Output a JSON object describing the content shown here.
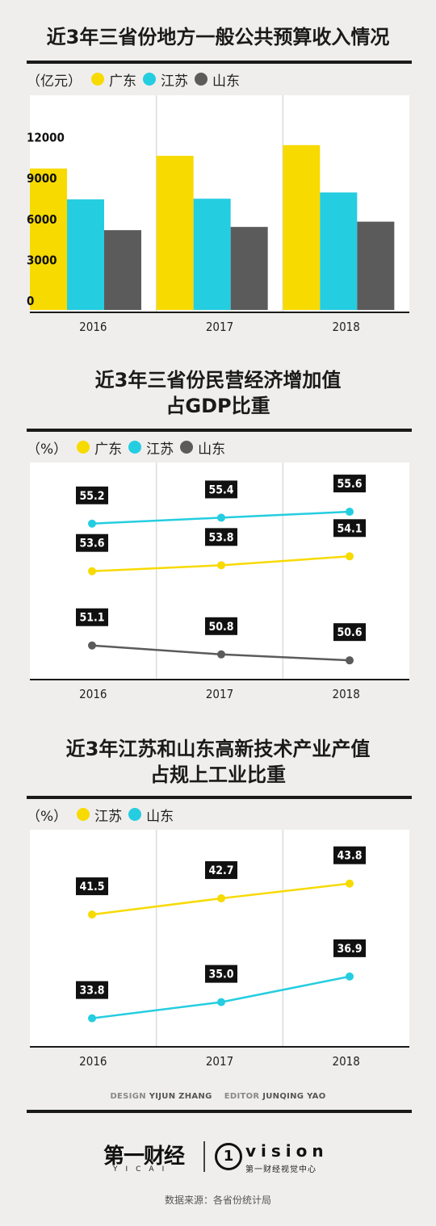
{
  "charts": [
    {
      "title_lines": [
        "近3年三省份地方一般公共预算收入情况"
      ],
      "unit": "（亿元）",
      "legend": [
        {
          "label": "广东",
          "color": "#f7da00"
        },
        {
          "label": "江苏",
          "color": "#25cde0"
        },
        {
          "label": "山东",
          "color": "#5b5b5b"
        }
      ]
    },
    {
      "title_lines": [
        "近3年三省份民营经济增加值",
        "占GDP比重"
      ],
      "unit": "（%）",
      "legend": [
        {
          "label": "广东",
          "color": "#f7da00"
        },
        {
          "label": "江苏",
          "color": "#25cde0"
        },
        {
          "label": "山东",
          "color": "#5b5b5b"
        }
      ]
    },
    {
      "title_lines": [
        "近3年江苏和山东高新技术产业产值",
        "占规上工业比重"
      ],
      "unit": "（%）",
      "legend": [
        {
          "label": "江苏",
          "color": "#f7da00"
        },
        {
          "label": "山东",
          "color": "#25cde0"
        }
      ]
    }
  ],
  "chart_data": [
    {
      "type": "bar",
      "title": "近3年三省份地方一般公共预算收入情况",
      "ylabel": "亿元",
      "categories": [
        "2016",
        "2017",
        "2018"
      ],
      "yticks": [
        "0",
        "3000",
        "6000",
        "9000",
        "12000"
      ],
      "ylim": [
        0,
        15000
      ],
      "series": [
        {
          "name": "广东",
          "color": "#f7da00",
          "values": [
            10390,
            11320,
            12105
          ]
        },
        {
          "name": "江苏",
          "color": "#25cde0",
          "values": [
            8121,
            8171,
            8630
          ]
        },
        {
          "name": "山东",
          "color": "#5b5b5b",
          "values": [
            5860,
            6098,
            6485
          ]
        }
      ],
      "grid": "vertical separators between years"
    },
    {
      "type": "line",
      "title": "近3年三省份民营经济增加值占GDP比重",
      "ylabel": "%",
      "categories": [
        "2016",
        "2017",
        "2018"
      ],
      "series": [
        {
          "name": "广东",
          "color": "#f7da00",
          "values": [
            53.6,
            53.8,
            54.1
          ],
          "labels": [
            "53.6",
            "53.8",
            "54.1"
          ]
        },
        {
          "name": "江苏",
          "color": "#25cde0",
          "values": [
            55.2,
            55.4,
            55.6
          ],
          "labels": [
            "55.2",
            "55.4",
            "55.6"
          ]
        },
        {
          "name": "山东",
          "color": "#5b5b5b",
          "values": [
            51.1,
            50.8,
            50.6
          ],
          "labels": [
            "51.1",
            "50.8",
            "50.6"
          ]
        }
      ],
      "grid": "vertical separators between years"
    },
    {
      "type": "line",
      "title": "近3年江苏和山东高新技术产业产值占规上工业比重",
      "ylabel": "%",
      "categories": [
        "2016",
        "2017",
        "2018"
      ],
      "series": [
        {
          "name": "江苏",
          "color": "#f7da00",
          "values": [
            41.5,
            42.7,
            43.8
          ],
          "labels": [
            "41.5",
            "42.7",
            "43.8"
          ]
        },
        {
          "name": "山东",
          "color": "#25cde0",
          "values": [
            33.8,
            35.0,
            36.9
          ],
          "labels": [
            "33.8",
            "35.0",
            "36.9"
          ]
        }
      ],
      "grid": "vertical separators between years"
    }
  ],
  "footer": {
    "design_label": "DESIGN",
    "design_name": "YIJUN ZHANG",
    "editor_label": "EDITOR",
    "editor_name": "JUNQING YAO",
    "brand_cn": "第一财经",
    "brand_en": "YICAI",
    "vision_mark": "1",
    "vision_text": "vision",
    "vision_sub": "第一财经视觉中心",
    "source": "数据来源：各省份统计局"
  }
}
